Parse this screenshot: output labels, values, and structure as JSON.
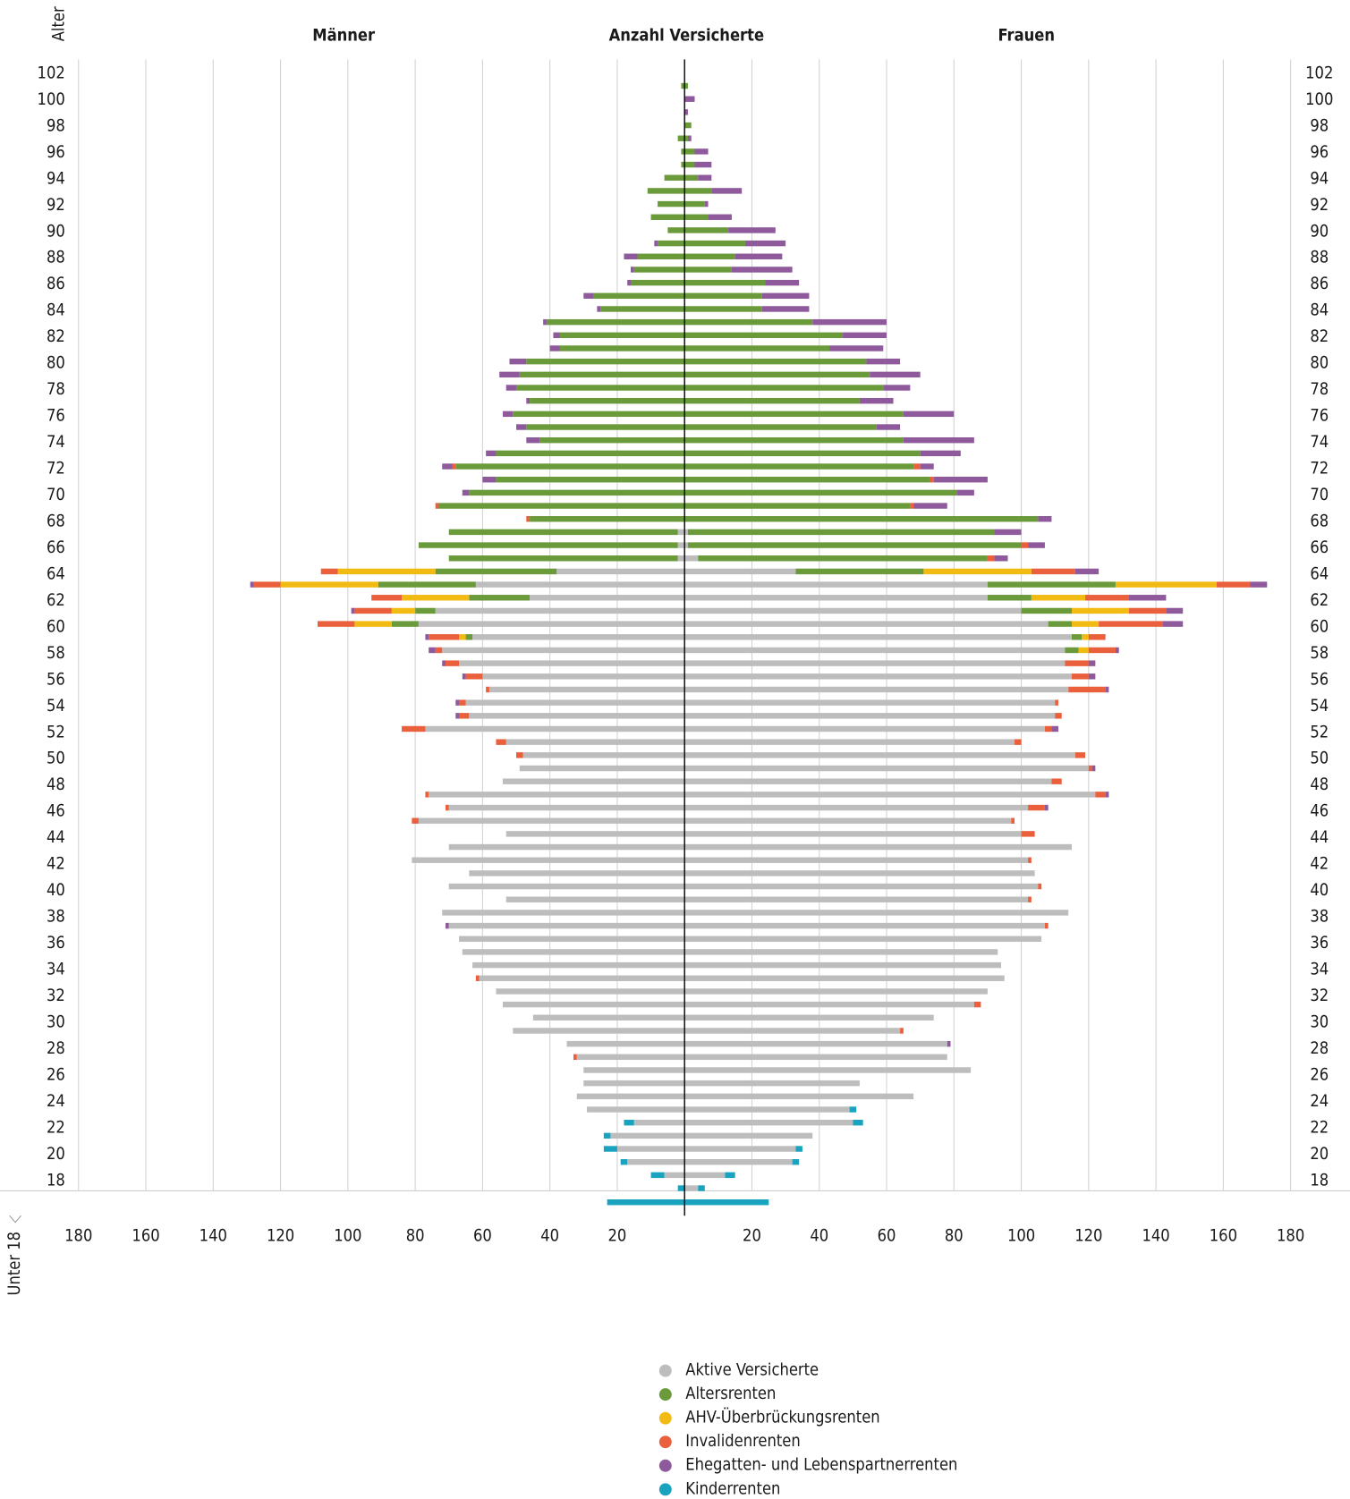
{
  "chart_data": {
    "type": "pyramid",
    "axis_title": "Alter",
    "left_title": "Männer",
    "center_title": "Anzahl Versicherte",
    "right_title": "Frauen",
    "xlim": [
      0,
      180
    ],
    "xticks_left": [
      180,
      160,
      140,
      120,
      100,
      80,
      60,
      40,
      20
    ],
    "xticks_right": [
      20,
      40,
      60,
      80,
      100,
      120,
      140,
      160,
      180
    ],
    "grid": true,
    "series": [
      {
        "name": "Aktive Versicherte",
        "color": "#bdbdbd"
      },
      {
        "name": "Altersrenten",
        "color": "#6a9a3a"
      },
      {
        "name": "AHV-Überbrückungsrenten",
        "color": "#f2bb13"
      },
      {
        "name": "Invalidenrenten",
        "color": "#ea5f3c"
      },
      {
        "name": "Ehegatten- und Lebenspartnerrenten",
        "color": "#8e5a9c"
      },
      {
        "name": "Kinderrenten",
        "color": "#1aa3bf"
      }
    ],
    "categories": [
      "102",
      null,
      "100",
      null,
      "98",
      null,
      "96",
      null,
      "94",
      null,
      "92",
      null,
      "90",
      null,
      "88",
      null,
      "86",
      null,
      "84",
      null,
      "82",
      null,
      "80",
      null,
      "78",
      null,
      "76",
      null,
      "74",
      null,
      "72",
      null,
      "70",
      null,
      "68",
      null,
      "66",
      null,
      "64",
      null,
      "62",
      null,
      "60",
      null,
      "58",
      null,
      "56",
      null,
      "54",
      null,
      "52",
      null,
      "50",
      null,
      "48",
      null,
      "46",
      null,
      "44",
      null,
      "42",
      null,
      "40",
      null,
      "38",
      null,
      "36",
      null,
      "34",
      null,
      "32",
      null,
      "30",
      null,
      "28",
      null,
      "26",
      null,
      "24",
      null,
      "22",
      null,
      "20",
      null,
      "18",
      null,
      "Unter 18"
    ],
    "men": [
      [
        0,
        0,
        0,
        0,
        0,
        0
      ],
      [
        0,
        1,
        0,
        0,
        0,
        0
      ],
      [
        0,
        0,
        0,
        0,
        0,
        0
      ],
      [
        0,
        0,
        0,
        0,
        0,
        0
      ],
      [
        0,
        0,
        0,
        0,
        0,
        0
      ],
      [
        0,
        2,
        0,
        0,
        0,
        0
      ],
      [
        0,
        1,
        0,
        0,
        0,
        0
      ],
      [
        0,
        1,
        0,
        0,
        0,
        0
      ],
      [
        0,
        6,
        0,
        0,
        0,
        0
      ],
      [
        0,
        11,
        0,
        0,
        0,
        0
      ],
      [
        0,
        8,
        0,
        0,
        0,
        0
      ],
      [
        0,
        10,
        0,
        0,
        0,
        0
      ],
      [
        0,
        5,
        0,
        0,
        0,
        0
      ],
      [
        0,
        8,
        0,
        0,
        1,
        0
      ],
      [
        0,
        14,
        0,
        0,
        4,
        0
      ],
      [
        0,
        15,
        0,
        0,
        1,
        0
      ],
      [
        0,
        16,
        0,
        0,
        1,
        0
      ],
      [
        0,
        27,
        0,
        0,
        3,
        0
      ],
      [
        0,
        25,
        0,
        0,
        1,
        0
      ],
      [
        0,
        41,
        0,
        0,
        1,
        0
      ],
      [
        0,
        37,
        0,
        0,
        2,
        0
      ],
      [
        0,
        37,
        0,
        0,
        3,
        0
      ],
      [
        0,
        47,
        0,
        0,
        5,
        0
      ],
      [
        0,
        49,
        0,
        0,
        6,
        0
      ],
      [
        0,
        50,
        0,
        0,
        3,
        0
      ],
      [
        0,
        46,
        0,
        0,
        1,
        0
      ],
      [
        0,
        51,
        0,
        0,
        3,
        0
      ],
      [
        0,
        47,
        0,
        0,
        3,
        0
      ],
      [
        0,
        43,
        0,
        0,
        4,
        0
      ],
      [
        0,
        56,
        0,
        0,
        3,
        0
      ],
      [
        0,
        68,
        0,
        1,
        3,
        0
      ],
      [
        0,
        56,
        0,
        0,
        4,
        0
      ],
      [
        0,
        64,
        0,
        0,
        2,
        0
      ],
      [
        0,
        73,
        0,
        1,
        0,
        0
      ],
      [
        0,
        46,
        0,
        1,
        0,
        0
      ],
      [
        2,
        68,
        0,
        0,
        0,
        0
      ],
      [
        2,
        77,
        0,
        0,
        0,
        0
      ],
      [
        2,
        68,
        0,
        0,
        0,
        0
      ],
      [
        38,
        36,
        29,
        5,
        0,
        0
      ],
      [
        62,
        29,
        29,
        8,
        1,
        0
      ],
      [
        46,
        18,
        20,
        9,
        0,
        0
      ],
      [
        74,
        6,
        7,
        11,
        1,
        0
      ],
      [
        79,
        8,
        11,
        11,
        0,
        0
      ],
      [
        63,
        2,
        2,
        9,
        1,
        0
      ],
      [
        72,
        0,
        0,
        2,
        2,
        0
      ],
      [
        67,
        0,
        0,
        4,
        1,
        0
      ],
      [
        60,
        0,
        0,
        5,
        1,
        0
      ],
      [
        58,
        0,
        0,
        1,
        0,
        0
      ],
      [
        65,
        0,
        0,
        2,
        1,
        0
      ],
      [
        64,
        0,
        0,
        3,
        1,
        0
      ],
      [
        77,
        0,
        0,
        7,
        0,
        0
      ],
      [
        53,
        0,
        0,
        3,
        0,
        0
      ],
      [
        48,
        0,
        0,
        2,
        0,
        0
      ],
      [
        49,
        0,
        0,
        0,
        0,
        0
      ],
      [
        54,
        0,
        0,
        0,
        0,
        0
      ],
      [
        76,
        0,
        0,
        1,
        0,
        0
      ],
      [
        70,
        0,
        0,
        1,
        0,
        0
      ],
      [
        79,
        0,
        0,
        2,
        0,
        0
      ],
      [
        53,
        0,
        0,
        0,
        0,
        0
      ],
      [
        70,
        0,
        0,
        0,
        0,
        0
      ],
      [
        81,
        0,
        0,
        0,
        0,
        0
      ],
      [
        64,
        0,
        0,
        0,
        0,
        0
      ],
      [
        70,
        0,
        0,
        0,
        0,
        0
      ],
      [
        53,
        0,
        0,
        0,
        0,
        0
      ],
      [
        72,
        0,
        0,
        0,
        0,
        0
      ],
      [
        70,
        0,
        0,
        0,
        1,
        0
      ],
      [
        67,
        0,
        0,
        0,
        0,
        0
      ],
      [
        66,
        0,
        0,
        0,
        0,
        0
      ],
      [
        63,
        0,
        0,
        0,
        0,
        0
      ],
      [
        61,
        0,
        0,
        1,
        0,
        0
      ],
      [
        56,
        0,
        0,
        0,
        0,
        0
      ],
      [
        54,
        0,
        0,
        0,
        0,
        0
      ],
      [
        45,
        0,
        0,
        0,
        0,
        0
      ],
      [
        51,
        0,
        0,
        0,
        0,
        0
      ],
      [
        35,
        0,
        0,
        0,
        0,
        0
      ],
      [
        32,
        0,
        0,
        1,
        0,
        0
      ],
      [
        30,
        0,
        0,
        0,
        0,
        0
      ],
      [
        30,
        0,
        0,
        0,
        0,
        0
      ],
      [
        32,
        0,
        0,
        0,
        0,
        0
      ],
      [
        29,
        0,
        0,
        0,
        0,
        0
      ],
      [
        15,
        0,
        0,
        0,
        0,
        3
      ],
      [
        22,
        0,
        0,
        0,
        0,
        2
      ],
      [
        20,
        0,
        0,
        0,
        0,
        4
      ],
      [
        17,
        0,
        0,
        0,
        0,
        2
      ],
      [
        6,
        0,
        0,
        0,
        0,
        4
      ],
      [
        0,
        0,
        0,
        0,
        0,
        2
      ],
      [
        0,
        0,
        0,
        0,
        0,
        23
      ]
    ],
    "women": [
      [
        0,
        0,
        0,
        0,
        0,
        0
      ],
      [
        0,
        1,
        0,
        0,
        0,
        0
      ],
      [
        0,
        0,
        0,
        0,
        3,
        0
      ],
      [
        0,
        0,
        0,
        0,
        1,
        0
      ],
      [
        0,
        2,
        0,
        0,
        0,
        0
      ],
      [
        0,
        1,
        0,
        0,
        1,
        0
      ],
      [
        0,
        3,
        0,
        0,
        4,
        0
      ],
      [
        0,
        3,
        0,
        0,
        5,
        0
      ],
      [
        0,
        4,
        0,
        0,
        4,
        0
      ],
      [
        0,
        8,
        0,
        0,
        9,
        0
      ],
      [
        0,
        6,
        0,
        0,
        1,
        0
      ],
      [
        0,
        7,
        0,
        0,
        7,
        0
      ],
      [
        0,
        13,
        0,
        0,
        14,
        0
      ],
      [
        0,
        18,
        0,
        0,
        12,
        0
      ],
      [
        0,
        15,
        0,
        0,
        14,
        0
      ],
      [
        0,
        14,
        0,
        0,
        18,
        0
      ],
      [
        0,
        24,
        0,
        0,
        10,
        0
      ],
      [
        0,
        23,
        0,
        0,
        14,
        0
      ],
      [
        0,
        23,
        0,
        0,
        14,
        0
      ],
      [
        0,
        38,
        0,
        0,
        22,
        0
      ],
      [
        0,
        47,
        0,
        0,
        13,
        0
      ],
      [
        0,
        43,
        0,
        0,
        16,
        0
      ],
      [
        0,
        54,
        0,
        0,
        10,
        0
      ],
      [
        0,
        55,
        0,
        0,
        15,
        0
      ],
      [
        0,
        59,
        0,
        0,
        8,
        0
      ],
      [
        0,
        52,
        0,
        0,
        10,
        0
      ],
      [
        0,
        65,
        0,
        0,
        15,
        0
      ],
      [
        0,
        57,
        0,
        0,
        7,
        0
      ],
      [
        0,
        65,
        0,
        0,
        21,
        0
      ],
      [
        0,
        70,
        0,
        0,
        12,
        0
      ],
      [
        0,
        68,
        0,
        2,
        4,
        0
      ],
      [
        0,
        73,
        0,
        1,
        16,
        0
      ],
      [
        0,
        81,
        0,
        0,
        5,
        0
      ],
      [
        0,
        67,
        0,
        1,
        10,
        0
      ],
      [
        0,
        105,
        0,
        0,
        4,
        0
      ],
      [
        1,
        91,
        0,
        0,
        8,
        0
      ],
      [
        1,
        99,
        0,
        2,
        5,
        0
      ],
      [
        4,
        86,
        0,
        2,
        4,
        0
      ],
      [
        33,
        38,
        32,
        13,
        7,
        0
      ],
      [
        90,
        38,
        30,
        10,
        5,
        0
      ],
      [
        90,
        13,
        16,
        13,
        11,
        0
      ],
      [
        100,
        15,
        17,
        11,
        5,
        0
      ],
      [
        108,
        7,
        8,
        19,
        6,
        0
      ],
      [
        115,
        3,
        2,
        5,
        0,
        0
      ],
      [
        113,
        4,
        3,
        8,
        1,
        0
      ],
      [
        113,
        0,
        0,
        7,
        2,
        0
      ],
      [
        115,
        0,
        0,
        5,
        2,
        0
      ],
      [
        114,
        0,
        0,
        11,
        1,
        0
      ],
      [
        110,
        0,
        0,
        1,
        0,
        0
      ],
      [
        110,
        0,
        0,
        2,
        0,
        0
      ],
      [
        107,
        0,
        0,
        2,
        2,
        0
      ],
      [
        98,
        0,
        0,
        2,
        0,
        0
      ],
      [
        116,
        0,
        0,
        3,
        0,
        0
      ],
      [
        120,
        0,
        0,
        1,
        1,
        0
      ],
      [
        109,
        0,
        0,
        3,
        0,
        0
      ],
      [
        122,
        0,
        0,
        3,
        1,
        0
      ],
      [
        102,
        0,
        0,
        5,
        1,
        0
      ],
      [
        97,
        0,
        0,
        1,
        0,
        0
      ],
      [
        100,
        0,
        0,
        4,
        0,
        0
      ],
      [
        115,
        0,
        0,
        0,
        0,
        0
      ],
      [
        102,
        0,
        0,
        1,
        0,
        0
      ],
      [
        104,
        0,
        0,
        0,
        0,
        0
      ],
      [
        105,
        0,
        0,
        1,
        0,
        0
      ],
      [
        102,
        0,
        0,
        1,
        0,
        0
      ],
      [
        114,
        0,
        0,
        0,
        0,
        0
      ],
      [
        107,
        0,
        0,
        1,
        0,
        0
      ],
      [
        106,
        0,
        0,
        0,
        0,
        0
      ],
      [
        93,
        0,
        0,
        0,
        0,
        0
      ],
      [
        94,
        0,
        0,
        0,
        0,
        0
      ],
      [
        95,
        0,
        0,
        0,
        0,
        0
      ],
      [
        90,
        0,
        0,
        0,
        0,
        0
      ],
      [
        86,
        0,
        0,
        2,
        0,
        0
      ],
      [
        74,
        0,
        0,
        0,
        0,
        0
      ],
      [
        64,
        0,
        0,
        1,
        0,
        0
      ],
      [
        78,
        0,
        0,
        0,
        1,
        0
      ],
      [
        78,
        0,
        0,
        0,
        0,
        0
      ],
      [
        85,
        0,
        0,
        0,
        0,
        0
      ],
      [
        52,
        0,
        0,
        0,
        0,
        0
      ],
      [
        68,
        0,
        0,
        0,
        0,
        0
      ],
      [
        49,
        0,
        0,
        0,
        0,
        2
      ],
      [
        50,
        0,
        0,
        0,
        0,
        3
      ],
      [
        38,
        0,
        0,
        0,
        0,
        0
      ],
      [
        33,
        0,
        0,
        0,
        0,
        2
      ],
      [
        32,
        0,
        0,
        0,
        0,
        2
      ],
      [
        12,
        0,
        0,
        0,
        0,
        3
      ],
      [
        4,
        0,
        0,
        0,
        0,
        2
      ],
      [
        0,
        0,
        0,
        0,
        0,
        25
      ]
    ]
  }
}
